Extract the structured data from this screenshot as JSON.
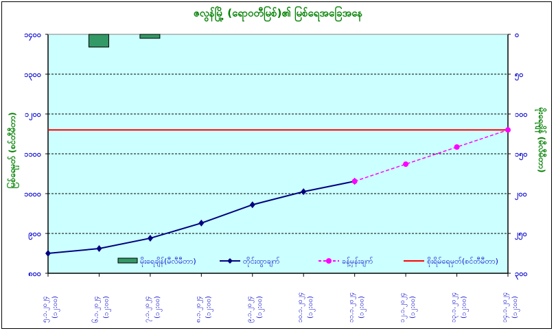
{
  "chart_data": {
    "type": "line",
    "title": "ဇလွန်မြို့ (ရောဝတီမြစ်)၏ မြစ်ရေအခြေအနေ",
    "categories": [
      [
        "၅.၁.၂၀၂၄",
        "(၁၂:၀၀)"
      ],
      [
        "၆.၁.၂၀၂၄",
        "(၁၂:၀၀)"
      ],
      [
        "၇.၁.၂၀၂၄",
        "(၁၂:၀၀)"
      ],
      [
        "၈.၁.၂၀၂၄",
        "(၁၂:၀၀)"
      ],
      [
        "၉.၁.၂၀၂၄",
        "(၁၂:၀၀)"
      ],
      [
        "၁၀.၁.၂၀၂၄",
        "(၁၂:၀၀)"
      ],
      [
        "၁၁.၁.၂၀၂၄",
        "(၁၂:၀၀)"
      ],
      [
        "၁၂.၁.၂၀၂၄",
        "(၁၂:၀၀)"
      ],
      [
        "၁၃.၁.၂၀၂၄",
        "(၁၂:၀၀)"
      ],
      [
        "၁၄.၁.၂၀၂၄",
        "(၁၂:၀၀)"
      ]
    ],
    "ylabel_left": "မြစ်ရေမှတ် (စင်တီမီတာ)",
    "ylabel_right": "မိုးရေချိန် (မီလီမီတာ)",
    "ylim_left": [
      800,
      1400
    ],
    "yticks_left": [
      "၈၀၀",
      "၉၀၀",
      "၁၀၀၀",
      "၁၁၀၀",
      "၁၂၀၀",
      "၁၃၀၀",
      "၁၄၀၀"
    ],
    "ylim_right": [
      300,
      0
    ],
    "right_axis_inverted": true,
    "yticks_right": [
      "၀",
      "၅၀",
      "၁၀၀",
      "၁၅၀",
      "၂၀၀",
      "၂၅၀",
      "၃၀၀"
    ],
    "grid": true,
    "legend_placement": "bottom",
    "series": [
      {
        "name": "မိုးရေချိန်(မီလီမီတာ)",
        "type": "bar",
        "axis": "right",
        "color": "#339966",
        "values": [
          0,
          16,
          5,
          0,
          0,
          0,
          0,
          0,
          0,
          0
        ]
      },
      {
        "name": "တိုင်းထွာချက်",
        "type": "line",
        "axis": "left",
        "color": "#000080",
        "marker": "diamond",
        "values": [
          850,
          862,
          888,
          926,
          972,
          1005,
          1031,
          null,
          null,
          null
        ]
      },
      {
        "name": "ခန့်မှန်းချက်",
        "type": "line",
        "axis": "left",
        "color": "#ff00ff",
        "marker": "circle",
        "dashed": true,
        "values": [
          null,
          null,
          null,
          null,
          null,
          null,
          1031,
          1074,
          1117,
          1160
        ]
      },
      {
        "name": "စိုးရိမ်ရေမှတ်(စင်တီမီတာ)",
        "type": "hline",
        "axis": "left",
        "color": "#ff0000",
        "value": 1160
      }
    ],
    "plot_background": "#ccffff"
  }
}
